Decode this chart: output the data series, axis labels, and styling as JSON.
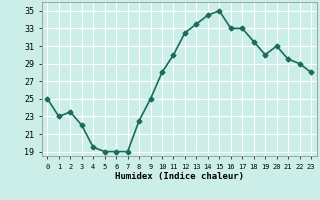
{
  "x": [
    0,
    1,
    2,
    3,
    4,
    5,
    6,
    7,
    8,
    9,
    10,
    11,
    12,
    13,
    14,
    15,
    16,
    17,
    18,
    19,
    20,
    21,
    22,
    23
  ],
  "y": [
    25,
    23,
    23.5,
    22,
    19.5,
    19,
    19,
    19,
    22.5,
    25,
    28,
    30,
    32.5,
    33.5,
    34.5,
    35,
    33,
    33,
    31.5,
    30,
    31,
    29.5,
    29,
    28
  ],
  "line_color": "#1a6b5a",
  "marker": "D",
  "marker_size": 2.5,
  "bg_color": "#cceee8",
  "grid_color": "#ffffff",
  "xlabel": "Humidex (Indice chaleur)",
  "xlim": [
    -0.5,
    23.5
  ],
  "ylim": [
    18.5,
    36
  ],
  "yticks": [
    19,
    21,
    23,
    25,
    27,
    29,
    31,
    33,
    35
  ],
  "xticks": [
    0,
    1,
    2,
    3,
    4,
    5,
    6,
    7,
    8,
    9,
    10,
    11,
    12,
    13,
    14,
    15,
    16,
    17,
    18,
    19,
    20,
    21,
    22,
    23
  ],
  "xtick_labels": [
    "0",
    "1",
    "2",
    "3",
    "4",
    "5",
    "6",
    "7",
    "8",
    "9",
    "10",
    "11",
    "12",
    "13",
    "14",
    "15",
    "16",
    "17",
    "18",
    "19",
    "20",
    "21",
    "22",
    "23"
  ],
  "line_width": 1.2
}
